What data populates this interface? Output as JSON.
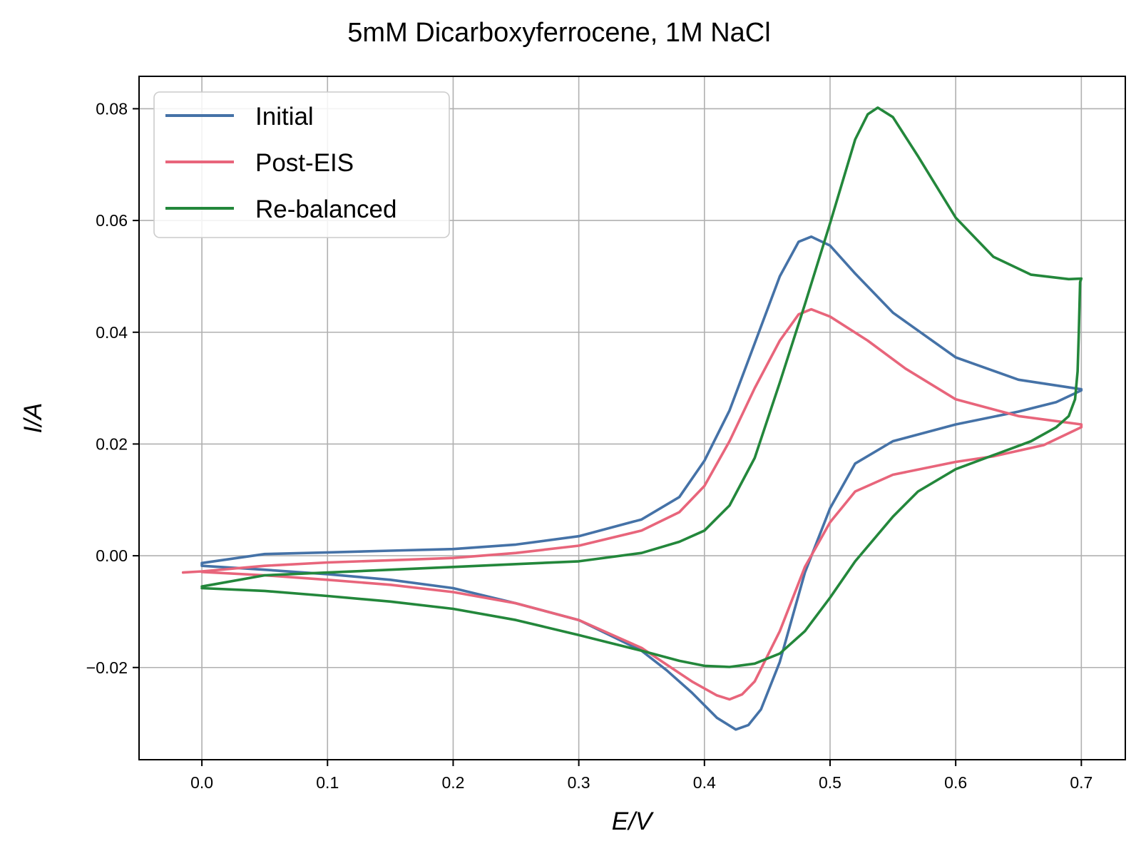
{
  "chart_data": {
    "type": "line",
    "title": "5mM Dicarboxyferrocene, 1M NaCl",
    "xlabel": "E/V",
    "ylabel": "I/A",
    "xlim": [
      -0.05,
      0.735
    ],
    "ylim": [
      -0.0365,
      0.0858
    ],
    "x_ticks": [
      0.0,
      0.1,
      0.2,
      0.3,
      0.4,
      0.5,
      0.6,
      0.7
    ],
    "x_tick_labels": [
      "0.0",
      "0.1",
      "0.2",
      "0.3",
      "0.4",
      "0.5",
      "0.6",
      "0.7"
    ],
    "y_ticks": [
      -0.02,
      0.0,
      0.02,
      0.04,
      0.06,
      0.08
    ],
    "y_tick_labels": [
      "−0.02",
      "0.00",
      "0.02",
      "0.04",
      "0.06",
      "0.08"
    ],
    "grid": true,
    "legend_position": "upper-left",
    "series": [
      {
        "name": "Initial",
        "color": "#4572a7",
        "points": [
          [
            0.0,
            -0.0013
          ],
          [
            0.05,
            0.0003
          ],
          [
            0.1,
            0.0006
          ],
          [
            0.15,
            0.0009
          ],
          [
            0.2,
            0.0012
          ],
          [
            0.25,
            0.002
          ],
          [
            0.3,
            0.0035
          ],
          [
            0.35,
            0.0065
          ],
          [
            0.38,
            0.0105
          ],
          [
            0.4,
            0.017
          ],
          [
            0.42,
            0.026
          ],
          [
            0.44,
            0.038
          ],
          [
            0.46,
            0.05
          ],
          [
            0.475,
            0.0562
          ],
          [
            0.485,
            0.0571
          ],
          [
            0.5,
            0.0555
          ],
          [
            0.52,
            0.0505
          ],
          [
            0.55,
            0.0435
          ],
          [
            0.6,
            0.0355
          ],
          [
            0.65,
            0.0315
          ],
          [
            0.7,
            0.0298
          ],
          [
            0.7,
            0.0296
          ],
          [
            0.68,
            0.0275
          ],
          [
            0.65,
            0.0258
          ],
          [
            0.6,
            0.0235
          ],
          [
            0.55,
            0.0205
          ],
          [
            0.52,
            0.0165
          ],
          [
            0.5,
            0.0085
          ],
          [
            0.48,
            -0.003
          ],
          [
            0.46,
            -0.019
          ],
          [
            0.445,
            -0.0275
          ],
          [
            0.435,
            -0.0303
          ],
          [
            0.425,
            -0.0311
          ],
          [
            0.41,
            -0.029
          ],
          [
            0.39,
            -0.0245
          ],
          [
            0.37,
            -0.0205
          ],
          [
            0.35,
            -0.017
          ],
          [
            0.3,
            -0.0115
          ],
          [
            0.25,
            -0.0085
          ],
          [
            0.2,
            -0.0058
          ],
          [
            0.15,
            -0.0043
          ],
          [
            0.1,
            -0.0033
          ],
          [
            0.05,
            -0.0025
          ],
          [
            0.0,
            -0.0018
          ],
          [
            0.0,
            -0.0013
          ]
        ]
      },
      {
        "name": "Post-EIS",
        "color": "#e8657b",
        "points": [
          [
            -0.015,
            -0.003
          ],
          [
            0.0,
            -0.0028
          ],
          [
            0.05,
            -0.0018
          ],
          [
            0.1,
            -0.0012
          ],
          [
            0.15,
            -0.0008
          ],
          [
            0.2,
            -0.0004
          ],
          [
            0.25,
            0.0005
          ],
          [
            0.3,
            0.0018
          ],
          [
            0.35,
            0.0045
          ],
          [
            0.38,
            0.0078
          ],
          [
            0.4,
            0.0125
          ],
          [
            0.42,
            0.0205
          ],
          [
            0.44,
            0.03
          ],
          [
            0.46,
            0.0385
          ],
          [
            0.475,
            0.0432
          ],
          [
            0.485,
            0.0441
          ],
          [
            0.5,
            0.0428
          ],
          [
            0.53,
            0.0385
          ],
          [
            0.56,
            0.0335
          ],
          [
            0.6,
            0.028
          ],
          [
            0.65,
            0.025
          ],
          [
            0.7,
            0.0235
          ],
          [
            0.7,
            0.023
          ],
          [
            0.67,
            0.0198
          ],
          [
            0.63,
            0.0178
          ],
          [
            0.6,
            0.0168
          ],
          [
            0.55,
            0.0145
          ],
          [
            0.52,
            0.0115
          ],
          [
            0.5,
            0.006
          ],
          [
            0.48,
            -0.002
          ],
          [
            0.46,
            -0.0135
          ],
          [
            0.44,
            -0.0225
          ],
          [
            0.43,
            -0.0248
          ],
          [
            0.42,
            -0.0257
          ],
          [
            0.41,
            -0.025
          ],
          [
            0.39,
            -0.0225
          ],
          [
            0.37,
            -0.0195
          ],
          [
            0.35,
            -0.0165
          ],
          [
            0.3,
            -0.0115
          ],
          [
            0.25,
            -0.0085
          ],
          [
            0.2,
            -0.0065
          ],
          [
            0.15,
            -0.0052
          ],
          [
            0.1,
            -0.0043
          ],
          [
            0.05,
            -0.0035
          ],
          [
            0.0,
            -0.0029
          ]
        ]
      },
      {
        "name": "Re-balanced",
        "color": "#23873b",
        "points": [
          [
            0.0,
            -0.0055
          ],
          [
            0.05,
            -0.0035
          ],
          [
            0.1,
            -0.003
          ],
          [
            0.15,
            -0.0025
          ],
          [
            0.2,
            -0.002
          ],
          [
            0.25,
            -0.0015
          ],
          [
            0.3,
            -0.001
          ],
          [
            0.35,
            0.0005
          ],
          [
            0.38,
            0.0025
          ],
          [
            0.4,
            0.0045
          ],
          [
            0.42,
            0.009
          ],
          [
            0.44,
            0.0175
          ],
          [
            0.46,
            0.031
          ],
          [
            0.48,
            0.045
          ],
          [
            0.5,
            0.0595
          ],
          [
            0.52,
            0.0745
          ],
          [
            0.53,
            0.079
          ],
          [
            0.538,
            0.0802
          ],
          [
            0.55,
            0.0785
          ],
          [
            0.57,
            0.0715
          ],
          [
            0.6,
            0.0605
          ],
          [
            0.63,
            0.0535
          ],
          [
            0.66,
            0.0503
          ],
          [
            0.69,
            0.0495
          ],
          [
            0.7,
            0.0496
          ],
          [
            0.699,
            0.049
          ],
          [
            0.698,
            0.04
          ],
          [
            0.697,
            0.033
          ],
          [
            0.695,
            0.028
          ],
          [
            0.69,
            0.025
          ],
          [
            0.68,
            0.023
          ],
          [
            0.66,
            0.0205
          ],
          [
            0.63,
            0.018
          ],
          [
            0.6,
            0.0155
          ],
          [
            0.57,
            0.0115
          ],
          [
            0.55,
            0.007
          ],
          [
            0.52,
            -0.001
          ],
          [
            0.5,
            -0.0075
          ],
          [
            0.48,
            -0.0135
          ],
          [
            0.46,
            -0.0175
          ],
          [
            0.44,
            -0.0193
          ],
          [
            0.42,
            -0.0199
          ],
          [
            0.4,
            -0.0197
          ],
          [
            0.38,
            -0.0188
          ],
          [
            0.35,
            -0.017
          ],
          [
            0.3,
            -0.0142
          ],
          [
            0.25,
            -0.0115
          ],
          [
            0.2,
            -0.0095
          ],
          [
            0.15,
            -0.0082
          ],
          [
            0.1,
            -0.0072
          ],
          [
            0.05,
            -0.0063
          ],
          [
            0.0,
            -0.0058
          ]
        ]
      }
    ]
  }
}
